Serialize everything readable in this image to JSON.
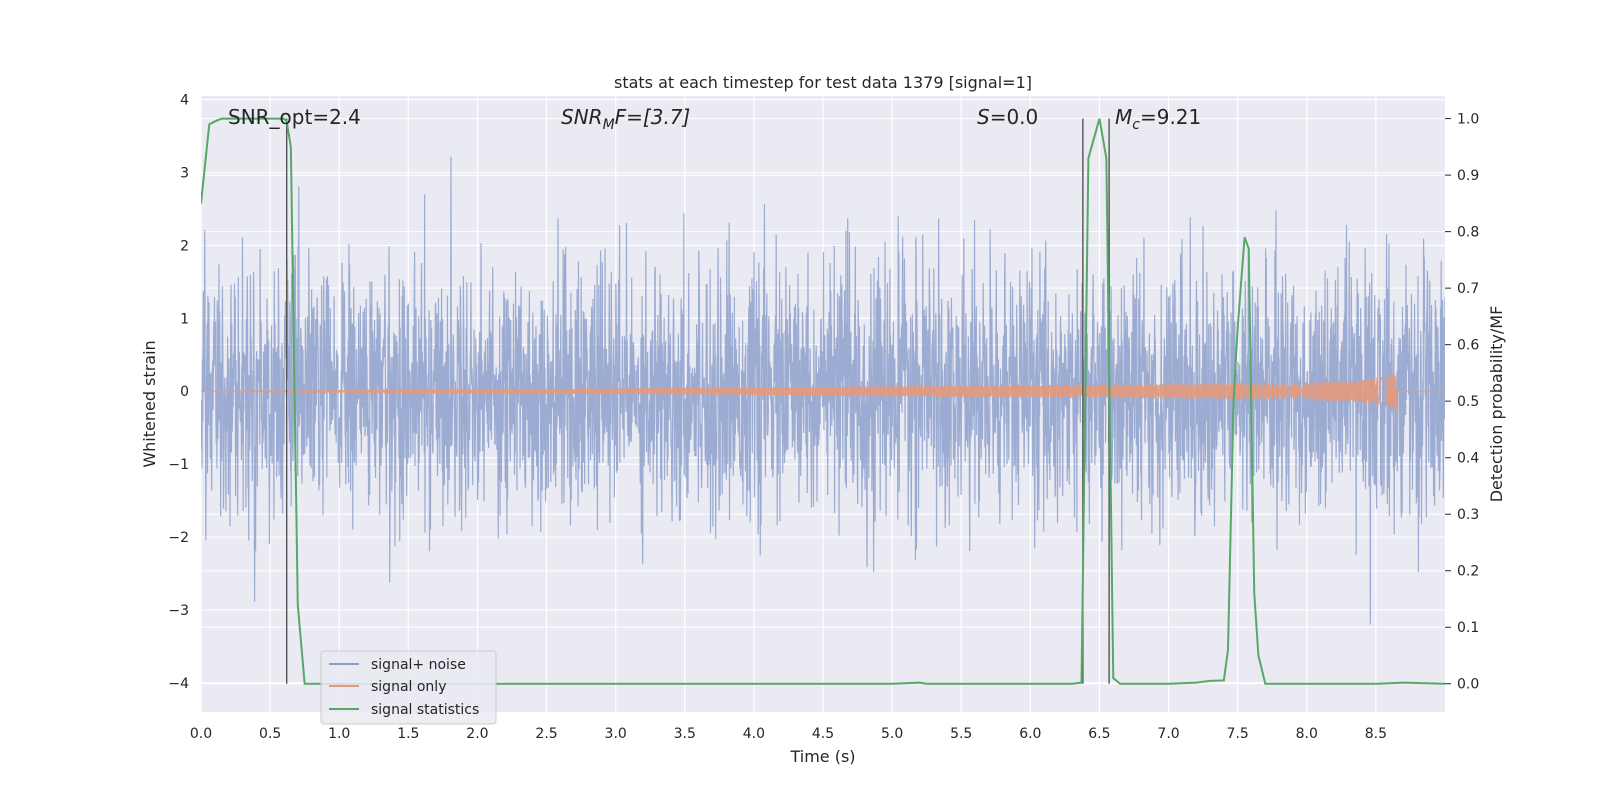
{
  "chart_data": {
    "type": "line",
    "title": "stats at each timestep for test data 1379 [signal=1]",
    "xlabel": "Time (s)",
    "ylabel_left": "Whitened strain",
    "ylabel_right": "Detection probability/MF",
    "xlim": [
      0.0,
      9.0
    ],
    "ylim_left": [
      -4.4,
      4.05
    ],
    "ylim_right": [
      -0.05,
      1.04
    ],
    "x_ticks": [
      "0.0",
      "0.5",
      "1.0",
      "1.5",
      "2.0",
      "2.5",
      "3.0",
      "3.5",
      "4.0",
      "4.5",
      "5.0",
      "5.5",
      "6.0",
      "6.5",
      "7.0",
      "7.5",
      "8.0",
      "8.5"
    ],
    "y_ticks_left": [
      "4",
      "3",
      "2",
      "1",
      "0",
      "−1",
      "−2",
      "−3",
      "−4"
    ],
    "y_ticks_right": [
      "1.0",
      "0.9",
      "0.8",
      "0.7",
      "0.6",
      "0.5",
      "0.4",
      "0.3",
      "0.2",
      "0.1",
      "0.0"
    ],
    "grid": true,
    "legend_position": "lower-left",
    "annotations": {
      "snr_opt": "SNR_opt=2.4",
      "snr_mf_main": "SNR",
      "snr_mf_sub": "M",
      "snr_mf_rest": "F=[3.7]",
      "s_main": "S",
      "s_rest": "=0.0",
      "mc_main": "M",
      "mc_sub": "c",
      "mc_rest": "=9.21"
    },
    "series": [
      {
        "name": "signal+ noise",
        "axis": "left",
        "color": "#8da0cb",
        "description_values": "noise_amplitude_std",
        "noise_std": 0.85,
        "noise_range": [
          -3.2,
          3.7
        ]
      },
      {
        "name": "signal only",
        "axis": "left",
        "color": "#e5997a",
        "chirp_end_time": 8.65,
        "chirp_peak_amplitude": 0.3
      },
      {
        "name": "signal statistics",
        "axis": "right",
        "color": "#55a868",
        "x": [
          0.0,
          0.06,
          0.1,
          0.15,
          0.2,
          0.3,
          0.4,
          0.5,
          0.55,
          0.58,
          0.6,
          0.62,
          0.65,
          0.7,
          0.75,
          0.8,
          1.0,
          2.0,
          3.0,
          4.0,
          5.0,
          5.2,
          5.25,
          5.3,
          5.5,
          6.0,
          6.3,
          6.37,
          6.42,
          6.5,
          6.55,
          6.6,
          6.65,
          6.7,
          7.0,
          7.2,
          7.3,
          7.4,
          7.43,
          7.47,
          7.5,
          7.55,
          7.58,
          7.62,
          7.65,
          7.7,
          7.8,
          8.0,
          8.5,
          8.7,
          9.0
        ],
        "values": [
          0.85,
          0.99,
          0.995,
          1.0,
          1.0,
          1.0,
          1.0,
          1.0,
          1.0,
          1.0,
          1.0,
          0.995,
          0.95,
          0.14,
          0.0,
          0.0,
          0.0,
          0.0,
          0.0,
          0.0,
          0.0,
          0.002,
          0.0,
          0.0,
          0.0,
          0.0,
          0.0,
          0.002,
          0.93,
          1.0,
          0.93,
          0.01,
          0.0,
          0.0,
          0.0,
          0.002,
          0.005,
          0.006,
          0.06,
          0.5,
          0.63,
          0.79,
          0.77,
          0.16,
          0.05,
          0.0,
          0.0,
          0.0,
          0.0,
          0.002,
          0.0
        ]
      }
    ],
    "vertical_markers": [
      0.62,
      6.38,
      6.57
    ],
    "marker_color": "#555555"
  }
}
